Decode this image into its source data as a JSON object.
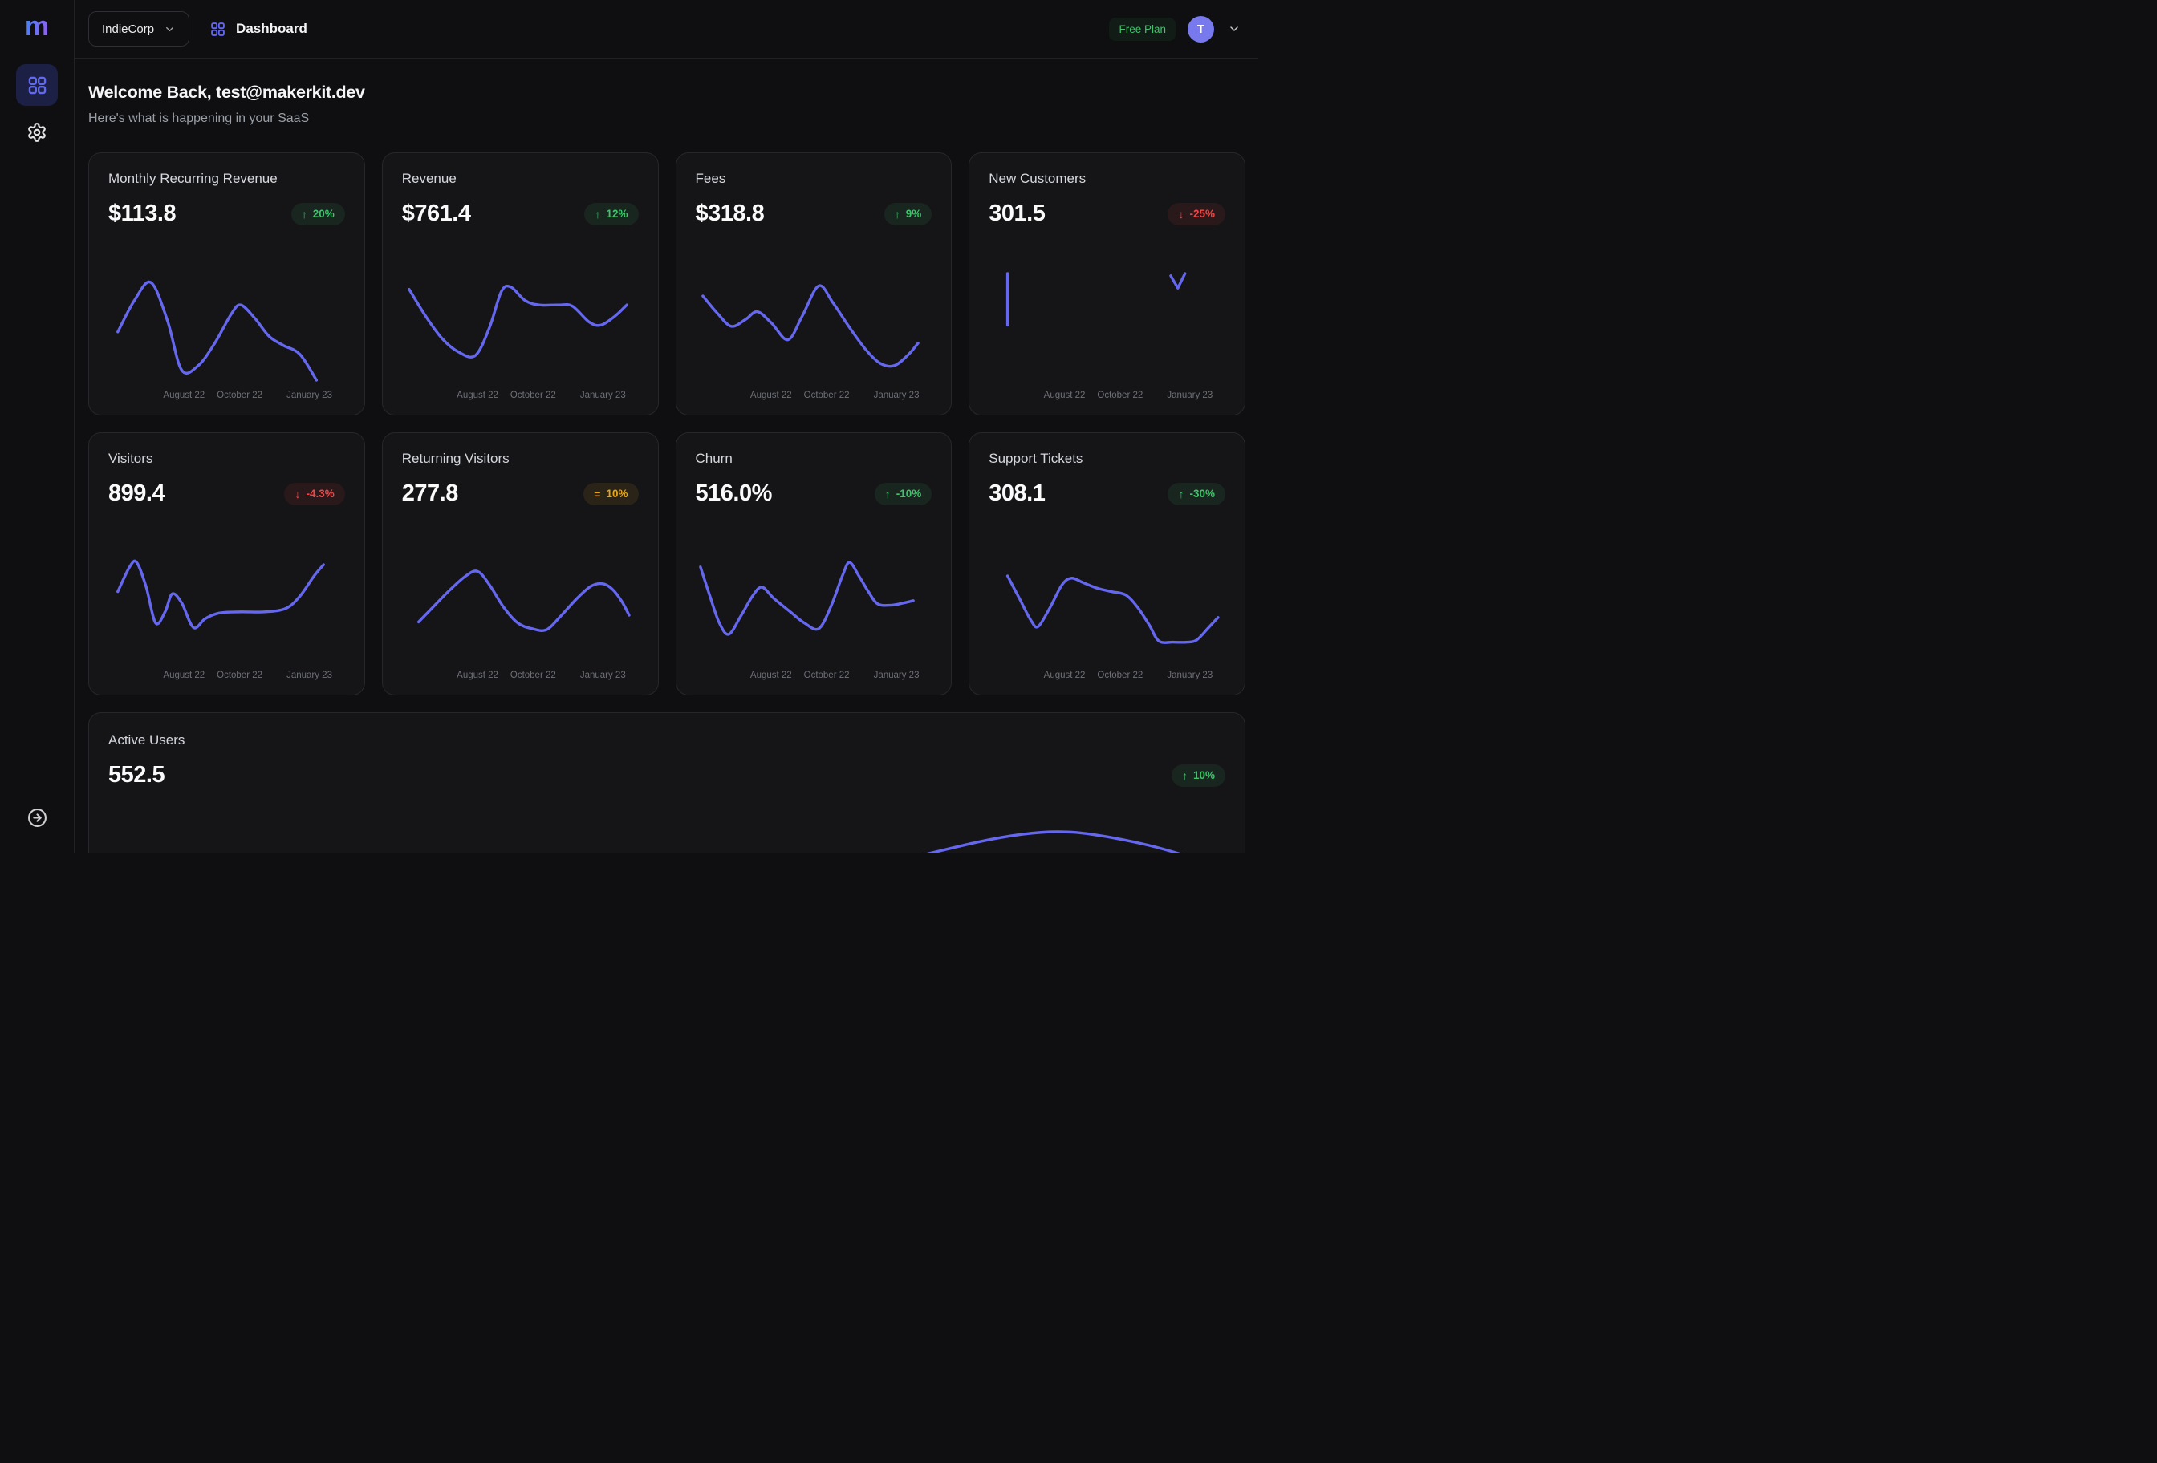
{
  "sidebar": {
    "logo": "m",
    "items": [
      {
        "id": "dashboard",
        "icon": "grid-icon",
        "active": true
      },
      {
        "id": "settings",
        "icon": "gear-icon",
        "active": false
      }
    ]
  },
  "topbar": {
    "team_selector": {
      "label": "IndieCorp"
    },
    "page": {
      "label": "Dashboard"
    },
    "plan_badge": {
      "label": "Free Plan"
    },
    "user": {
      "initial": "T"
    }
  },
  "header": {
    "title": "Welcome Back, test@makerkit.dev",
    "subtitle": "Here's what is happening in your SaaS"
  },
  "colors": {
    "accent": "#6568ef",
    "green": "#3ec46a",
    "red": "#ef4747",
    "amber": "#e7a50f",
    "avatar": "#7779ec"
  },
  "chart_x_labels": [
    "August 22",
    "October 22",
    "January 23"
  ],
  "chart_data": [
    {
      "type": "line",
      "title": "Monthly Recurring Revenue",
      "value": "$113.8",
      "badge": {
        "icon": "up",
        "tone": "green",
        "label": "20%"
      },
      "x_ticks": [
        "August 22",
        "October 22",
        "January 23"
      ],
      "spark": [
        [
          4,
          52
        ],
        [
          11,
          24
        ],
        [
          18,
          8
        ],
        [
          25,
          42
        ],
        [
          31,
          86
        ],
        [
          38,
          82
        ],
        [
          45,
          62
        ],
        [
          52,
          36
        ],
        [
          56,
          28
        ],
        [
          62,
          40
        ],
        [
          68,
          56
        ],
        [
          74,
          64
        ],
        [
          81,
          72
        ],
        [
          88,
          95
        ]
      ]
    },
    {
      "type": "line",
      "title": "Revenue",
      "value": "$761.4",
      "badge": {
        "icon": "up",
        "tone": "green",
        "label": "12%"
      },
      "x_ticks": [
        "August 22",
        "October 22",
        "January 23"
      ],
      "spark": [
        [
          3,
          14
        ],
        [
          10,
          38
        ],
        [
          17,
          58
        ],
        [
          24,
          70
        ],
        [
          31,
          73
        ],
        [
          37,
          48
        ],
        [
          42,
          16
        ],
        [
          46,
          12
        ],
        [
          52,
          24
        ],
        [
          58,
          28
        ],
        [
          66,
          28
        ],
        [
          72,
          29
        ],
        [
          79,
          43
        ],
        [
          84,
          46
        ],
        [
          90,
          38
        ],
        [
          95,
          28
        ]
      ]
    },
    {
      "type": "line",
      "title": "Fees",
      "value": "$318.8",
      "badge": {
        "icon": "up",
        "tone": "green",
        "label": "9%"
      },
      "x_ticks": [
        "August 22",
        "October 22",
        "January 23"
      ],
      "spark": [
        [
          3,
          20
        ],
        [
          9,
          35
        ],
        [
          15,
          47
        ],
        [
          21,
          41
        ],
        [
          26,
          34
        ],
        [
          32,
          44
        ],
        [
          39,
          59
        ],
        [
          45,
          38
        ],
        [
          52,
          11
        ],
        [
          58,
          26
        ],
        [
          65,
          48
        ],
        [
          72,
          68
        ],
        [
          78,
          80
        ],
        [
          84,
          82
        ],
        [
          90,
          72
        ],
        [
          94,
          62
        ]
      ]
    },
    {
      "type": "line",
      "title": "New Customers",
      "value": "301.5",
      "badge": {
        "icon": "down",
        "tone": "red",
        "label": "-25%"
      },
      "x_ticks": [
        "August 22",
        "October 22",
        "January 23"
      ],
      "segments": [
        [
          [
            8,
            0
          ],
          [
            8,
            46
          ]
        ],
        [
          [
            77,
            2
          ],
          [
            80,
            13
          ],
          [
            83,
            0
          ]
        ]
      ]
    },
    {
      "type": "line",
      "title": "Visitors",
      "value": "899.4",
      "badge": {
        "icon": "down",
        "tone": "red",
        "label": "-4.3%"
      },
      "x_ticks": [
        "August 22",
        "October 22",
        "January 23"
      ],
      "spark": [
        [
          4,
          34
        ],
        [
          9,
          12
        ],
        [
          12,
          8
        ],
        [
          16,
          30
        ],
        [
          20,
          62
        ],
        [
          24,
          52
        ],
        [
          27,
          36
        ],
        [
          31,
          44
        ],
        [
          36,
          66
        ],
        [
          41,
          58
        ],
        [
          47,
          53
        ],
        [
          56,
          52
        ],
        [
          66,
          52
        ],
        [
          75,
          49
        ],
        [
          81,
          38
        ],
        [
          87,
          20
        ],
        [
          91,
          10
        ]
      ]
    },
    {
      "type": "line",
      "title": "Returning Visitors",
      "value": "277.8",
      "badge": {
        "icon": "flat",
        "tone": "amber",
        "label": "10%"
      },
      "x_ticks": [
        "August 22",
        "October 22",
        "January 23"
      ],
      "spark": [
        [
          7,
          61
        ],
        [
          13,
          48
        ],
        [
          20,
          33
        ],
        [
          27,
          20
        ],
        [
          32,
          16
        ],
        [
          37,
          28
        ],
        [
          43,
          48
        ],
        [
          49,
          62
        ],
        [
          55,
          67
        ],
        [
          61,
          68
        ],
        [
          67,
          56
        ],
        [
          74,
          40
        ],
        [
          80,
          29
        ],
        [
          85,
          27
        ],
        [
          89,
          32
        ],
        [
          93,
          43
        ],
        [
          96,
          55
        ]
      ]
    },
    {
      "type": "line",
      "title": "Churn",
      "value": "516.0%",
      "badge": {
        "icon": "up",
        "tone": "green",
        "label": "-10%"
      },
      "x_ticks": [
        "August 22",
        "October 22",
        "January 23"
      ],
      "spark": [
        [
          2,
          12
        ],
        [
          6,
          38
        ],
        [
          10,
          62
        ],
        [
          14,
          72
        ],
        [
          19,
          56
        ],
        [
          24,
          38
        ],
        [
          28,
          30
        ],
        [
          33,
          40
        ],
        [
          40,
          52
        ],
        [
          46,
          62
        ],
        [
          52,
          67
        ],
        [
          57,
          48
        ],
        [
          62,
          20
        ],
        [
          65,
          8
        ],
        [
          69,
          20
        ],
        [
          73,
          34
        ],
        [
          77,
          45
        ],
        [
          83,
          46
        ],
        [
          88,
          44
        ],
        [
          92,
          42
        ]
      ]
    },
    {
      "type": "line",
      "title": "Support Tickets",
      "value": "308.1",
      "badge": {
        "icon": "up",
        "tone": "green",
        "label": "-30%"
      },
      "x_ticks": [
        "August 22",
        "October 22",
        "January 23"
      ],
      "spark": [
        [
          8,
          20
        ],
        [
          13,
          40
        ],
        [
          18,
          60
        ],
        [
          21,
          65
        ],
        [
          26,
          48
        ],
        [
          31,
          28
        ],
        [
          35,
          22
        ],
        [
          40,
          26
        ],
        [
          46,
          31
        ],
        [
          52,
          34
        ],
        [
          58,
          37
        ],
        [
          63,
          48
        ],
        [
          68,
          64
        ],
        [
          72,
          78
        ],
        [
          78,
          79
        ],
        [
          84,
          79
        ],
        [
          88,
          77
        ],
        [
          93,
          66
        ],
        [
          97,
          57
        ]
      ]
    }
  ],
  "active_card": {
    "type": "line",
    "title": "Active Users",
    "value": "552.5",
    "badge": {
      "icon": "up",
      "tone": "green",
      "label": "10%"
    },
    "spark": [
      [
        72,
        100
      ],
      [
        78,
        42
      ],
      [
        82,
        14
      ],
      [
        85,
        6
      ],
      [
        88,
        15
      ],
      [
        93,
        54
      ],
      [
        97,
        100
      ]
    ]
  }
}
